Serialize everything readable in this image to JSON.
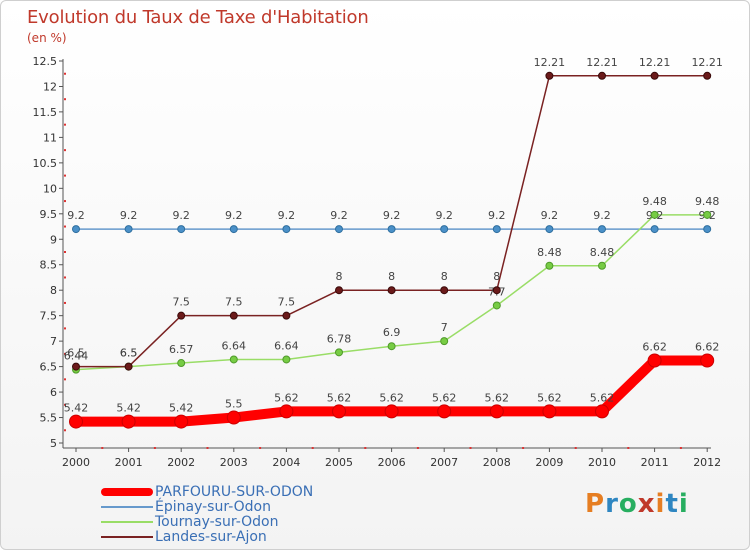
{
  "title": "Evolution du Taux de Taxe d'Habitation",
  "unit_label": "(en %)",
  "logo_text": "Proxiti",
  "chart_data": {
    "type": "line",
    "title": "Evolution du Taux de Taxe d'Habitation",
    "ylabel": "(en %)",
    "xlabel": "",
    "x": [
      "2000",
      "2001",
      "2002",
      "2003",
      "2004",
      "2005",
      "2006",
      "2007",
      "2008",
      "2009",
      "2010",
      "2011",
      "2012"
    ],
    "ylim": [
      5,
      12.5
    ],
    "yticks": [
      "5",
      "5.5",
      "6",
      "6.5",
      "7",
      "7.5",
      "8",
      "8.5",
      "9",
      "9.5",
      "10",
      "10.5",
      "11",
      "11.5",
      "12",
      "12.5"
    ],
    "grid": false,
    "legend_position": "bottom-left",
    "series": [
      {
        "name": "PARFOURU-SUR-ODON",
        "color": "#ff0000",
        "values": [
          5.42,
          5.42,
          5.42,
          5.5,
          5.62,
          5.62,
          5.62,
          5.62,
          5.62,
          5.62,
          5.62,
          6.62,
          6.62
        ],
        "labels": [
          "5.42",
          "5.42",
          "5.42",
          "5.5",
          "5.62",
          "5.62",
          "5.62",
          "5.62",
          "5.62",
          "5.62",
          "5.62",
          "6.62",
          "6.62"
        ]
      },
      {
        "name": "Épinay-sur-Odon",
        "color": "#6699cc",
        "values": [
          9.2,
          9.2,
          9.2,
          9.2,
          9.2,
          9.2,
          9.2,
          9.2,
          9.2,
          9.2,
          9.2,
          9.2,
          9.2
        ],
        "labels": [
          "9.2",
          "9.2",
          "9.2",
          "9.2",
          "9.2",
          "9.2",
          "9.2",
          "9.2",
          "9.2",
          "9.2",
          "9.2",
          "9.2",
          "9.2"
        ]
      },
      {
        "name": "Tournay-sur-Odon",
        "color": "#99dd66",
        "values": [
          6.44,
          6.5,
          6.57,
          6.64,
          6.64,
          6.78,
          6.9,
          7,
          7.7,
          8.48,
          8.48,
          9.48,
          9.48
        ],
        "labels": [
          "6.44",
          "6.5",
          "6.57",
          "6.64",
          "6.64",
          "6.78",
          "6.9",
          "7",
          "7.7",
          "8.48",
          "8.48",
          "9.48",
          "9.48"
        ]
      },
      {
        "name": "Landes-sur-Ajon",
        "color": "#7a2222",
        "values": [
          6.5,
          6.5,
          7.5,
          7.5,
          7.5,
          8,
          8,
          8,
          8,
          12.21,
          12.21,
          12.21,
          12.21
        ],
        "labels": [
          "6.5",
          "6.5",
          "7.5",
          "7.5",
          "7.5",
          "8",
          "8",
          "8",
          "8",
          "12.21",
          "12.21",
          "12.21",
          "12.21"
        ]
      }
    ]
  }
}
